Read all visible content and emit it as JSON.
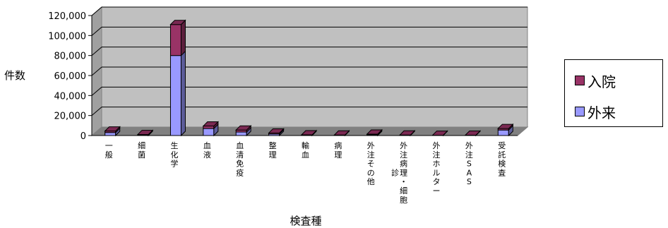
{
  "chart_data": {
    "type": "bar",
    "stacked": true,
    "ylabel": "件数",
    "xlabel": "検査種",
    "ylim": [
      0,
      120000
    ],
    "yticks": [
      "0",
      "20,000",
      "40,000",
      "60,000",
      "80,000",
      "100,000",
      "120,000"
    ],
    "categories": [
      [
        "一",
        "般"
      ],
      [
        "細",
        "菌"
      ],
      [
        "生",
        "化",
        "学"
      ],
      [
        "血",
        "液"
      ],
      [
        "血",
        "清",
        "免",
        "疫"
      ],
      [
        "整",
        "理"
      ],
      [
        "輸",
        "血"
      ],
      [
        "病",
        "理"
      ],
      [
        "外",
        "注",
        "そ",
        "の",
        "他"
      ],
      [
        "外",
        "注",
        "病",
        "理",
        "・",
        "細",
        "胞",
        "診"
      ],
      [
        "外",
        "注",
        "ホ",
        "ル",
        "タ",
        "ー"
      ],
      [
        "外",
        "注",
        "S",
        "A",
        "S"
      ],
      [
        "受",
        "託",
        "検",
        "査"
      ]
    ],
    "series": [
      {
        "name": "外来",
        "color": "#9999ff",
        "values": [
          3000,
          500,
          80000,
          7000,
          3500,
          1500,
          500,
          300,
          800,
          300,
          200,
          300,
          5500
        ]
      },
      {
        "name": "入院",
        "color": "#993366",
        "values": [
          1500,
          500,
          31000,
          2500,
          2000,
          1000,
          200,
          200,
          600,
          200,
          100,
          50,
          1500
        ]
      }
    ],
    "grid": true,
    "legend_position": "right"
  }
}
